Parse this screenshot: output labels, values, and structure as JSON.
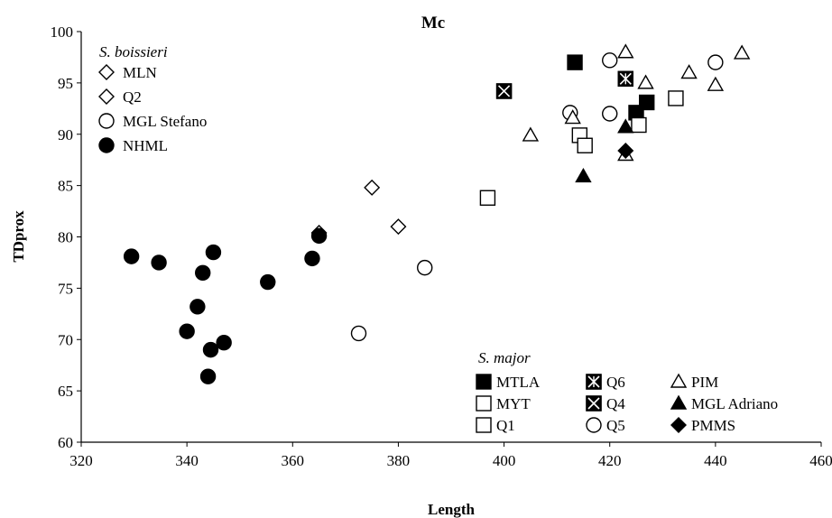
{
  "chart_data": {
    "type": "scatter",
    "title": "Mc",
    "xlabel": "Length",
    "ylabel": "TDprox",
    "xlim": [
      320,
      460
    ],
    "ylim": [
      60,
      100
    ],
    "xticks": [
      "320",
      "340",
      "360",
      "380",
      "400",
      "420",
      "440",
      "460"
    ],
    "yticks": [
      "60",
      "65",
      "70",
      "75",
      "80",
      "85",
      "90",
      "95",
      "100"
    ],
    "grid": false,
    "legend_groups": [
      {
        "title": "S. boissieri",
        "placement": "top-left"
      },
      {
        "title": "S. major",
        "placement": "bottom-right"
      }
    ],
    "series": [
      {
        "name": "MLN",
        "marker": "diamond-open",
        "points": [
          [
            375,
            84.8
          ],
          [
            380,
            81.0
          ],
          [
            365,
            80.4
          ]
        ]
      },
      {
        "name": "Q2",
        "marker": "diamond-open",
        "points": []
      },
      {
        "name": "MGL Stefano",
        "marker": "circle-open",
        "points": [
          [
            385,
            77.0
          ],
          [
            372.5,
            70.6
          ]
        ]
      },
      {
        "name": "NHML",
        "marker": "circle-filled",
        "points": [
          [
            329.5,
            78.1
          ],
          [
            334.7,
            77.5
          ],
          [
            343,
            76.5
          ],
          [
            345,
            78.5
          ],
          [
            342,
            73.2
          ],
          [
            340,
            70.8
          ],
          [
            344.5,
            69.0
          ],
          [
            347,
            69.7
          ],
          [
            344,
            66.4
          ],
          [
            355.3,
            75.6
          ],
          [
            363.7,
            77.9
          ],
          [
            365,
            80.1
          ]
        ]
      },
      {
        "name": "MTLA",
        "marker": "square-filled",
        "points": [
          [
            413.4,
            97.0
          ],
          [
            425,
            92.1
          ],
          [
            427,
            93.1
          ]
        ]
      },
      {
        "name": "MYT",
        "marker": "square-open",
        "points": [
          [
            396.9,
            83.8
          ],
          [
            414.3,
            89.9
          ],
          [
            415.3,
            88.9
          ],
          [
            425.5,
            90.9
          ],
          [
            432.5,
            93.5
          ]
        ]
      },
      {
        "name": "Q1",
        "marker": "square-open",
        "points": []
      },
      {
        "name": "Q6",
        "marker": "square-x-star",
        "points": [
          [
            423,
            95.4
          ]
        ]
      },
      {
        "name": "Q4",
        "marker": "square-x",
        "points": [
          [
            400,
            94.2
          ]
        ]
      },
      {
        "name": "Q5",
        "marker": "circle-open",
        "points": [
          [
            420,
            97.2
          ],
          [
            412.5,
            92.1
          ],
          [
            420,
            92.0
          ],
          [
            440,
            97.0
          ]
        ]
      },
      {
        "name": "PIM",
        "marker": "triangle-open",
        "points": [
          [
            405,
            89.9
          ],
          [
            413,
            91.6
          ],
          [
            423,
            98.0
          ],
          [
            423,
            88.0
          ],
          [
            426.8,
            95.0
          ],
          [
            435,
            96.0
          ],
          [
            440,
            94.8
          ],
          [
            445,
            97.9
          ]
        ]
      },
      {
        "name": "MGL Adriano",
        "marker": "triangle-filled",
        "points": [
          [
            415,
            85.9
          ],
          [
            423,
            90.7
          ]
        ]
      },
      {
        "name": "PMMS",
        "marker": "diamond-filled",
        "points": [
          [
            423,
            88.4
          ]
        ]
      }
    ]
  }
}
